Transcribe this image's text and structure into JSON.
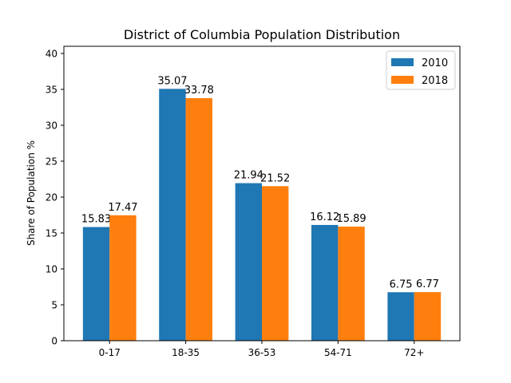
{
  "chart_data": {
    "type": "bar",
    "title": "District of Columbia Population Distribution",
    "xlabel": "",
    "ylabel": "Share of Population %",
    "categories": [
      "0-17",
      "18-35",
      "36-53",
      "54-71",
      "72+"
    ],
    "series": [
      {
        "name": "2010",
        "color": "#1f77b4",
        "values": [
          15.83,
          35.07,
          21.94,
          16.12,
          6.75
        ]
      },
      {
        "name": "2018",
        "color": "#ff7f0e",
        "values": [
          17.47,
          33.78,
          21.52,
          15.89,
          6.77
        ]
      }
    ],
    "ylim": [
      0,
      40
    ],
    "yticks": [
      0,
      5,
      10,
      15,
      20,
      25,
      30,
      35,
      40
    ],
    "grid": false,
    "legend_position": "top-right"
  }
}
